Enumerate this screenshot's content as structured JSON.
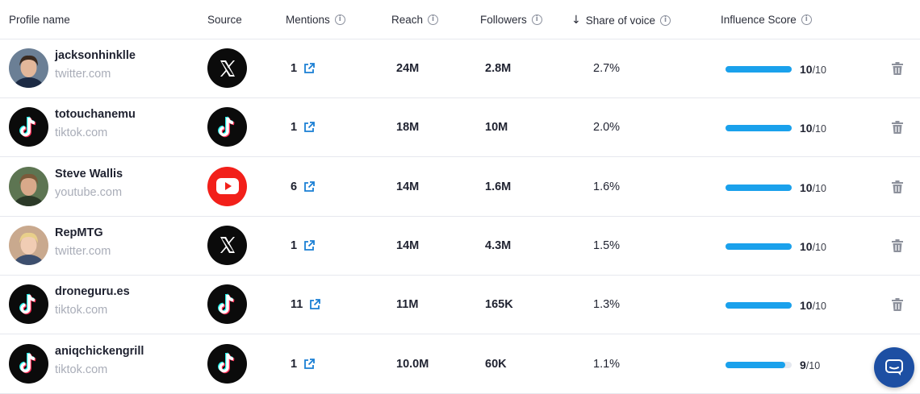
{
  "columns": {
    "profile": "Profile name",
    "source": "Source",
    "mentions": "Mentions",
    "reach": "Reach",
    "followers": "Followers",
    "share": "Share of voice",
    "influence": "Influence Score"
  },
  "rows": [
    {
      "name": "jacksonhinklle",
      "site": "twitter.com",
      "source": "x-icon",
      "avatar": "photo",
      "mentions": "1",
      "reach": "24M",
      "followers": "2.8M",
      "share": "2.7%",
      "score": "10",
      "score_total": "/10",
      "score_fraction": 1.0
    },
    {
      "name": "totouchanemu",
      "site": "tiktok.com",
      "source": "tiktok-icon",
      "avatar": "tiktok",
      "mentions": "1",
      "reach": "18M",
      "followers": "10M",
      "share": "2.0%",
      "score": "10",
      "score_total": "/10",
      "score_fraction": 1.0
    },
    {
      "name": "Steve Wallis",
      "site": "youtube.com",
      "source": "youtube-icon",
      "avatar": "photo",
      "mentions": "6",
      "reach": "14M",
      "followers": "1.6M",
      "share": "1.6%",
      "score": "10",
      "score_total": "/10",
      "score_fraction": 1.0
    },
    {
      "name": "RepMTG",
      "site": "twitter.com",
      "source": "x-icon",
      "avatar": "photo",
      "mentions": "1",
      "reach": "14M",
      "followers": "4.3M",
      "share": "1.5%",
      "score": "10",
      "score_total": "/10",
      "score_fraction": 1.0
    },
    {
      "name": "droneguru.es",
      "site": "tiktok.com",
      "source": "tiktok-icon",
      "avatar": "tiktok",
      "mentions": "11",
      "reach": "11M",
      "followers": "165K",
      "share": "1.3%",
      "score": "10",
      "score_total": "/10",
      "score_fraction": 1.0
    },
    {
      "name": "aniqchickengrill",
      "site": "tiktok.com",
      "source": "tiktok-icon",
      "avatar": "tiktok",
      "mentions": "1",
      "reach": "10.0M",
      "followers": "60K",
      "share": "1.1%",
      "score": "9",
      "score_total": "/10",
      "score_fraction": 0.9
    }
  ],
  "colors": {
    "accent": "#1aa1ec",
    "track": "#e4e8ef",
    "link": "#1a7fd4",
    "youtube": "#f2201a",
    "chat": "#1d4fa3"
  }
}
